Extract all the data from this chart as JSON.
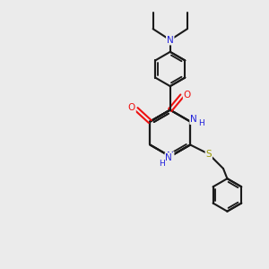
{
  "bg_color": "#ebebeb",
  "bond_color": "#1a1a1a",
  "N_color": "#2020dd",
  "O_color": "#ee1111",
  "S_color": "#999900",
  "lw": 1.5,
  "figsize": [
    3.0,
    3.0
  ],
  "dpi": 100,
  "xlim": [
    0,
    10
  ],
  "ylim": [
    0,
    10
  ]
}
